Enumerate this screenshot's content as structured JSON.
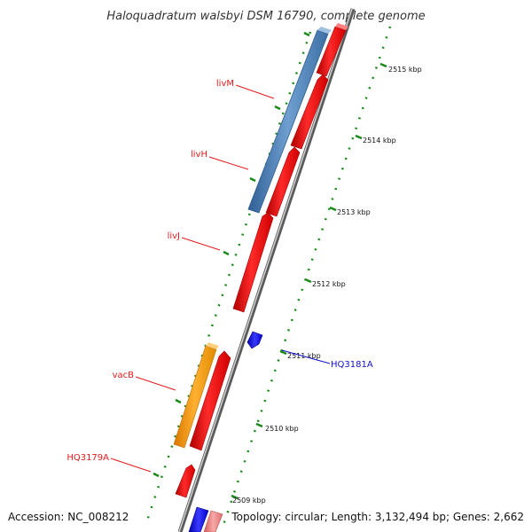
{
  "title": "Haloquadratum walsbyi DSM 16790, complete genome",
  "footer": {
    "accession": "Accession: NC_008212",
    "topology": "Topology: circular; Length: 3,132,494 bp; Genes: 2,662"
  },
  "ticks": [
    "2515 kbp",
    "2514 kbp",
    "2513 kbp",
    "2512 kbp",
    "2511 kbp",
    "2510 kbp",
    "2509 kbp"
  ],
  "genes": [
    {
      "name": "livM",
      "color": "#e31b1b"
    },
    {
      "name": "livH",
      "color": "#e31b1b"
    },
    {
      "name": "livJ",
      "color": "#e31b1b"
    },
    {
      "name": "vacB",
      "color": "#e31b1b"
    },
    {
      "name": "HQ3179A",
      "color": "#e31b1b"
    },
    {
      "name": "HQ3181A",
      "color": "#1010c8"
    }
  ],
  "colors": {
    "forward_gene": "#ff0000",
    "reverse_gene": "#1a1aff",
    "blue_feature": "#4a7fb5",
    "orange_feature": "#ff9900",
    "pink_feature": "#f08080",
    "backbone": "#888888",
    "tick_marks": "#1a8a1a"
  }
}
